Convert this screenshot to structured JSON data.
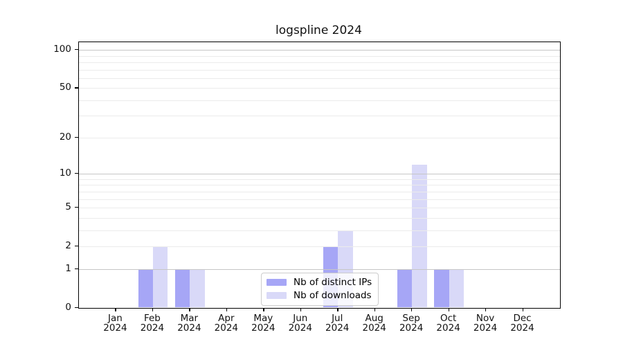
{
  "chart_data": {
    "type": "bar",
    "title": "logspline 2024",
    "categories": [
      "Jan",
      "Feb",
      "Mar",
      "Apr",
      "May",
      "Jun",
      "Jul",
      "Aug",
      "Sep",
      "Oct",
      "Nov",
      "Dec"
    ],
    "x_year": "2024",
    "series": [
      {
        "name": "Nb of distinct IPs",
        "color": "#a6a6f6",
        "values": [
          0,
          1,
          1,
          0,
          0,
          0,
          2,
          0,
          1,
          1,
          0,
          0
        ]
      },
      {
        "name": "Nb of downloads",
        "color": "#d9d9f8",
        "values": [
          0,
          2,
          1,
          0,
          0,
          0,
          3,
          0,
          12,
          1,
          0,
          0
        ]
      }
    ],
    "y_ticks": [
      0,
      1,
      2,
      5,
      10,
      20,
      50,
      100
    ],
    "gridlines": {
      "major": [
        1,
        10,
        100
      ],
      "minor": [
        2,
        3,
        4,
        5,
        6,
        7,
        8,
        9,
        20,
        30,
        40,
        50,
        60,
        70,
        80,
        90
      ]
    },
    "scale": "log1p",
    "ylim": [
      0,
      115
    ],
    "xlabel": "",
    "ylabel": "",
    "bar_width_frac": 0.4,
    "grid": "on",
    "legend_position": "lower-center-right"
  }
}
